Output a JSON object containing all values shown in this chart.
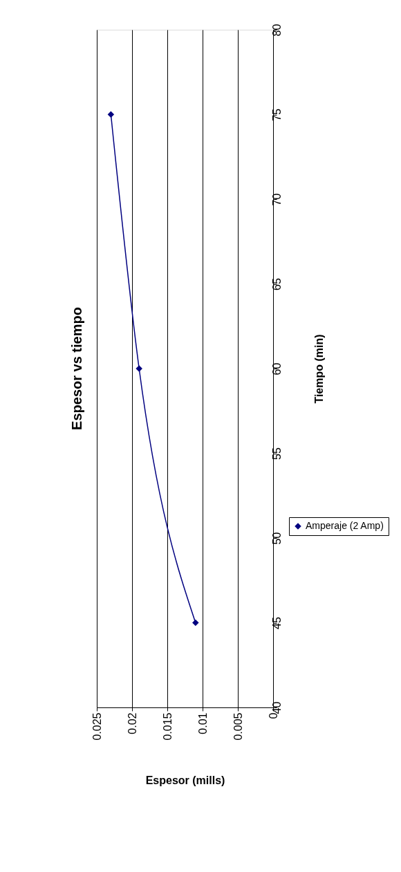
{
  "chart_data": {
    "type": "line",
    "title": "Espesor vs tiempo",
    "xlabel": "Espesor (mills)",
    "ylabel": "Tiempo (min)",
    "x": [
      0.011,
      0.019,
      0.023
    ],
    "series": [
      {
        "name": "Amperaje (2 Amp)",
        "color": "#000080",
        "values": [
          45,
          60,
          75
        ]
      }
    ],
    "xlim": [
      0.025,
      0
    ],
    "xticks": [
      0,
      0.005,
      0.01,
      0.015,
      0.02,
      0.025
    ],
    "ylim": [
      40,
      80
    ],
    "yticks": [
      40,
      45,
      50,
      55,
      60,
      65,
      70,
      75,
      80
    ],
    "grid": "x",
    "legend": "right",
    "marker": "diamond",
    "line_style": "solid"
  }
}
